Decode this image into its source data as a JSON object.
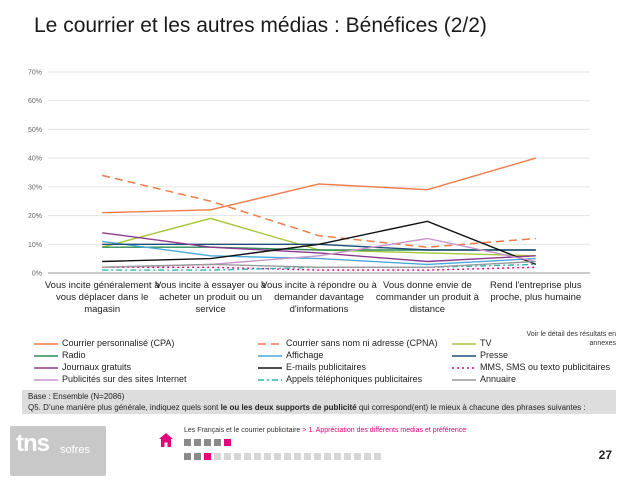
{
  "slide": {
    "title": "Le courrier et les autres médias : Bénéfices (2/2)",
    "note": "Voir le détail des résultats en annexes",
    "base": "Base : Ensemble (N=2086)",
    "question_prefix": "Q5. D’une manière plus générale, indiquez quels sont ",
    "question_bold": "le ou les deux supports de publicité",
    "question_suffix": " qui correspond(ent) le mieux à chacune des phrases suivantes :",
    "breadcrumb_main": "Les Français et le courrier publicitaire",
    "breadcrumb_sep": " > ",
    "breadcrumb_section": "1. Appréciation des différents medias et préférence",
    "page_number": "27",
    "logo_tns": "tns",
    "logo_sofres": "sofres"
  },
  "progress": {
    "row1": {
      "total": 5,
      "active": 5
    },
    "row2": {
      "total": 20,
      "active": 3
    }
  },
  "chart_data": {
    "type": "line",
    "categories": [
      "Vous incite généralement à vous déplacer dans le magasin",
      "Vous incite à essayer ou à acheter un produit ou un service",
      "Vous incite à répondre ou à demander davantage d'informations",
      "Vous donne envie de commander un produit à distance",
      "Rend l'entreprise plus proche, plus humaine"
    ],
    "yticks": [
      "0%",
      "10%",
      "20%",
      "30%",
      "40%",
      "50%",
      "60%",
      "70%"
    ],
    "ylim": [
      0,
      70
    ],
    "grid": true,
    "legend_position": "bottom",
    "series": [
      {
        "name": "Courrier personnalisé (CPA)",
        "values": [
          21,
          22,
          31,
          29,
          40
        ],
        "color": "#f07c4a",
        "dash": "solid"
      },
      {
        "name": "Courrier sans nom ni adresse (CPNA)",
        "values": [
          34,
          25,
          13,
          9,
          12
        ],
        "color": "#f07c4a",
        "dash": "long"
      },
      {
        "name": "TV",
        "values": [
          9,
          19,
          8,
          7,
          6
        ],
        "color": "#a6c73a",
        "dash": "solid"
      },
      {
        "name": "Radio",
        "values": [
          9,
          9,
          8,
          8,
          8
        ],
        "color": "#2e8b57",
        "dash": "solid"
      },
      {
        "name": "Affichage",
        "values": [
          11,
          6,
          5,
          3,
          5
        ],
        "color": "#4aa8d8",
        "dash": "solid"
      },
      {
        "name": "Presse",
        "values": [
          10,
          10,
          10,
          8,
          8
        ],
        "color": "#1f4e79",
        "dash": "solid"
      },
      {
        "name": "Journaux gratuits",
        "values": [
          14,
          9,
          7,
          4,
          6
        ],
        "color": "#8e3a8e",
        "dash": "solid"
      },
      {
        "name": "E-mails publicitaires",
        "values": [
          4,
          5,
          10,
          18,
          3
        ],
        "color": "#111111",
        "dash": "solid"
      },
      {
        "name": "MMS, SMS ou texto publicitaires",
        "values": [
          2,
          2,
          1,
          1,
          2
        ],
        "color": "#e6007e",
        "dash": "dot"
      },
      {
        "name": "Publicités sur des sites Internet",
        "values": [
          2,
          3,
          6,
          12,
          4
        ],
        "color": "#c896c8",
        "dash": "solid"
      },
      {
        "name": "Appels téléphoniques publicitaires",
        "values": [
          1,
          1,
          2,
          2,
          3
        ],
        "color": "#2fb5b5",
        "dash": "dashdot"
      },
      {
        "name": "Annuaire",
        "values": [
          2,
          3,
          2,
          2,
          4
        ],
        "color": "#999999",
        "dash": "solid"
      }
    ]
  }
}
